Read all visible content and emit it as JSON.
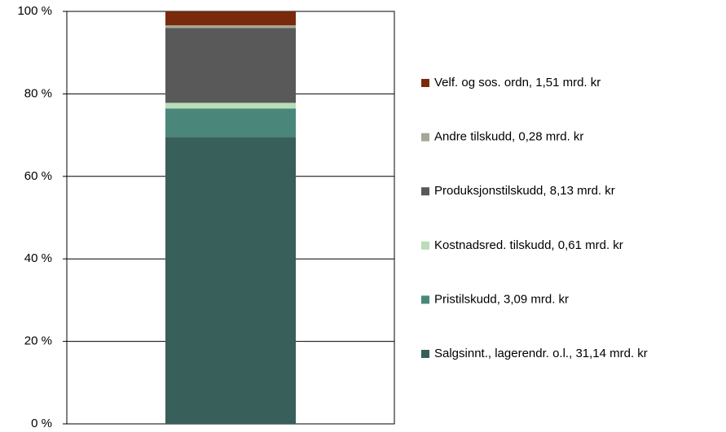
{
  "chart_data": {
    "type": "stacked_bar",
    "categories": [
      null
    ],
    "series": [
      {
        "name": "Salgsinnt., lagerendr. o.l., 31,14 mrd. kr",
        "color": "#385f5a",
        "values": [
          69.57
        ]
      },
      {
        "name": "Pristilskudd, 3,09 mrd. kr",
        "color": "#4a877a",
        "values": [
          6.9
        ]
      },
      {
        "name": "Kostnadsred. tilskudd, 0,61 mrd. kr",
        "color": "#b8ddb8",
        "values": [
          1.36
        ]
      },
      {
        "name": "Produksjonstilskudd, 8,13 mrd. kr",
        "color": "#595959",
        "values": [
          18.16
        ]
      },
      {
        "name": "Andre tilskudd, 0,28 mrd. kr",
        "color": "#a5a795",
        "values": [
          0.63
        ]
      },
      {
        "name": "Velf. og sos. ordn, 1,51 mrd. kr",
        "color": "#7a2a0c",
        "values": [
          3.37
        ]
      }
    ],
    "ylim": [
      0,
      100
    ],
    "yticks": [
      {
        "value": 0,
        "label": "0 %"
      },
      {
        "value": 20,
        "label": "20 %"
      },
      {
        "value": 40,
        "label": "40 %"
      },
      {
        "value": 60,
        "label": "60 %"
      },
      {
        "value": 80,
        "label": "80 %"
      },
      {
        "value": 100,
        "label": "100 %"
      }
    ],
    "grid": true
  }
}
